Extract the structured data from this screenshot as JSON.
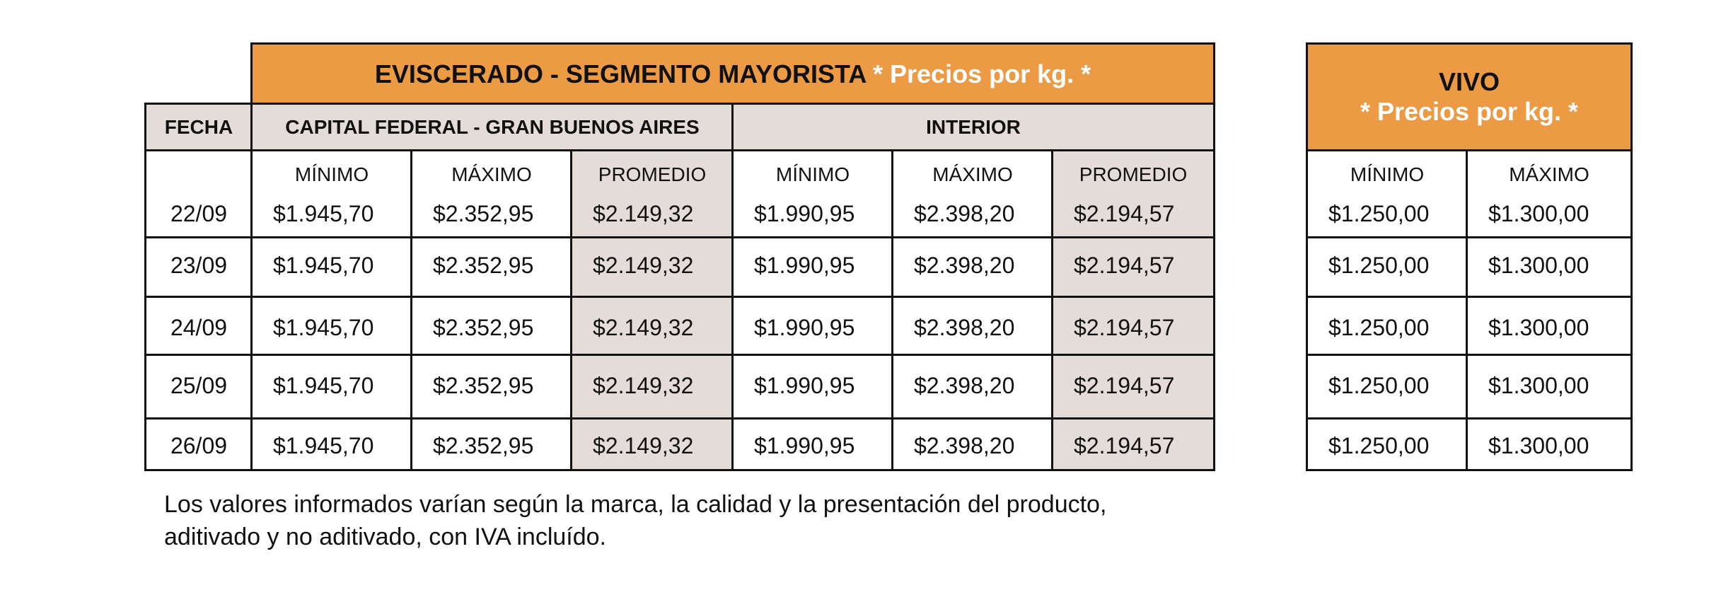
{
  "eviscerado": {
    "title": "EVISCERADO - SEGMENTO MAYORISTA",
    "price_note": "* Precios por kg. *",
    "fecha_label": "FECHA",
    "region_capital": "CAPITAL FEDERAL - GRAN BUENOS AIRES",
    "region_interior": "INTERIOR",
    "columns": [
      "MÍNIMO",
      "MÁXIMO",
      "PROMEDIO",
      "MÍNIMO",
      "MÁXIMO",
      "PROMEDIO"
    ],
    "rows": [
      {
        "fecha": "22/09",
        "values": [
          "$1.945,70",
          "$2.352,95",
          "$2.149,32",
          "$1.990,95",
          "$2.398,20",
          "$2.194,57"
        ]
      },
      {
        "fecha": "23/09",
        "values": [
          "$1.945,70",
          "$2.352,95",
          "$2.149,32",
          "$1.990,95",
          "$2.398,20",
          "$2.194,57"
        ]
      },
      {
        "fecha": "24/09",
        "values": [
          "$1.945,70",
          "$2.352,95",
          "$2.149,32",
          "$1.990,95",
          "$2.398,20",
          "$2.194,57"
        ]
      },
      {
        "fecha": "25/09",
        "values": [
          "$1.945,70",
          "$2.352,95",
          "$2.149,32",
          "$1.990,95",
          "$2.398,20",
          "$2.194,57"
        ]
      },
      {
        "fecha": "26/09",
        "values": [
          "$1.945,70",
          "$2.352,95",
          "$2.149,32",
          "$1.990,95",
          "$2.398,20",
          "$2.194,57"
        ]
      }
    ]
  },
  "vivo": {
    "title": "VIVO",
    "price_note": "* Precios por kg. *",
    "columns": [
      "MÍNIMO",
      "MÁXIMO"
    ],
    "rows": [
      [
        "$1.250,00",
        "$1.300,00"
      ],
      [
        "$1.250,00",
        "$1.300,00"
      ],
      [
        "$1.250,00",
        "$1.300,00"
      ],
      [
        "$1.250,00",
        "$1.300,00"
      ],
      [
        "$1.250,00",
        "$1.300,00"
      ]
    ]
  },
  "footnote": {
    "line1": "Los valores informados varían según la marca, la calidad y la presentación del producto,",
    "line2": "aditivado y no aditivado, con IVA incluído."
  },
  "colors": {
    "header_orange": "#ec9a43",
    "shade_grey": "#e3dcd8"
  }
}
